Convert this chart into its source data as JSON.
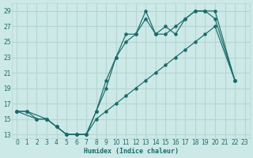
{
  "xlabel": "Humidex (Indice chaleur)",
  "bg_color": "#cce9e7",
  "grid_color": "#b5d5d3",
  "line_color": "#1a6b6b",
  "xlim": [
    -0.5,
    23.5
  ],
  "ylim": [
    12.5,
    30
  ],
  "xticks": [
    0,
    1,
    2,
    3,
    4,
    5,
    6,
    7,
    8,
    9,
    10,
    11,
    12,
    13,
    14,
    15,
    16,
    17,
    18,
    19,
    20,
    21,
    22,
    23
  ],
  "yticks": [
    13,
    15,
    17,
    19,
    21,
    23,
    25,
    27,
    29
  ],
  "line1_x": [
    0,
    1,
    3,
    4,
    5,
    6,
    7,
    8,
    9,
    10,
    11,
    12,
    13,
    14,
    15,
    16,
    17,
    18,
    19,
    20,
    22
  ],
  "line1_y": [
    16,
    16,
    15,
    14,
    13,
    13,
    13,
    15,
    16,
    17,
    18,
    19,
    20,
    21,
    22,
    23,
    24,
    25,
    26,
    27,
    20
  ],
  "line2_x": [
    0,
    1,
    2,
    3,
    4,
    5,
    6,
    7,
    8,
    9,
    10,
    11,
    12,
    13,
    14,
    15,
    16,
    17,
    18,
    19,
    20,
    22
  ],
  "line2_y": [
    16,
    16,
    15,
    15,
    14,
    13,
    13,
    13,
    16,
    20,
    23,
    25,
    26,
    29,
    26,
    26,
    27,
    28,
    29,
    29,
    29,
    20
  ],
  "line3_x": [
    0,
    2,
    3,
    4,
    5,
    6,
    7,
    8,
    9,
    10,
    11,
    12,
    13,
    14,
    15,
    16,
    17,
    18,
    19,
    20,
    22
  ],
  "line3_y": [
    16,
    15,
    15,
    14,
    13,
    13,
    13,
    16,
    19,
    23,
    26,
    26,
    28,
    26,
    27,
    26,
    28,
    29,
    29,
    28,
    20
  ]
}
